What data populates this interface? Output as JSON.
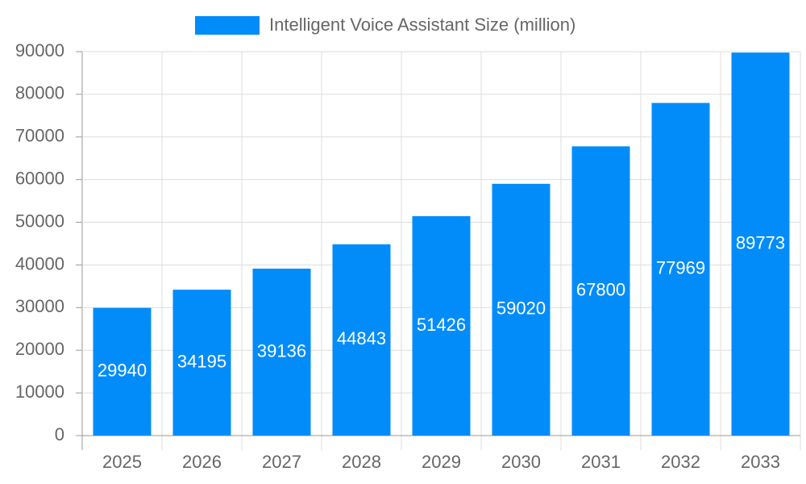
{
  "chart_data": {
    "type": "bar",
    "categories": [
      "2025",
      "2026",
      "2027",
      "2028",
      "2029",
      "2030",
      "2031",
      "2032",
      "2033"
    ],
    "series": [
      {
        "name": "Intelligent Voice Assistant Size (million)",
        "color": "#028cfa",
        "values": [
          29940,
          34195,
          39136,
          44843,
          51426,
          59020,
          67800,
          77969,
          89773
        ]
      }
    ],
    "ylim": [
      0,
      90000
    ],
    "yticks": [
      0,
      10000,
      20000,
      30000,
      40000,
      50000,
      60000,
      70000,
      80000,
      90000
    ],
    "grid": true,
    "legend": "top"
  }
}
